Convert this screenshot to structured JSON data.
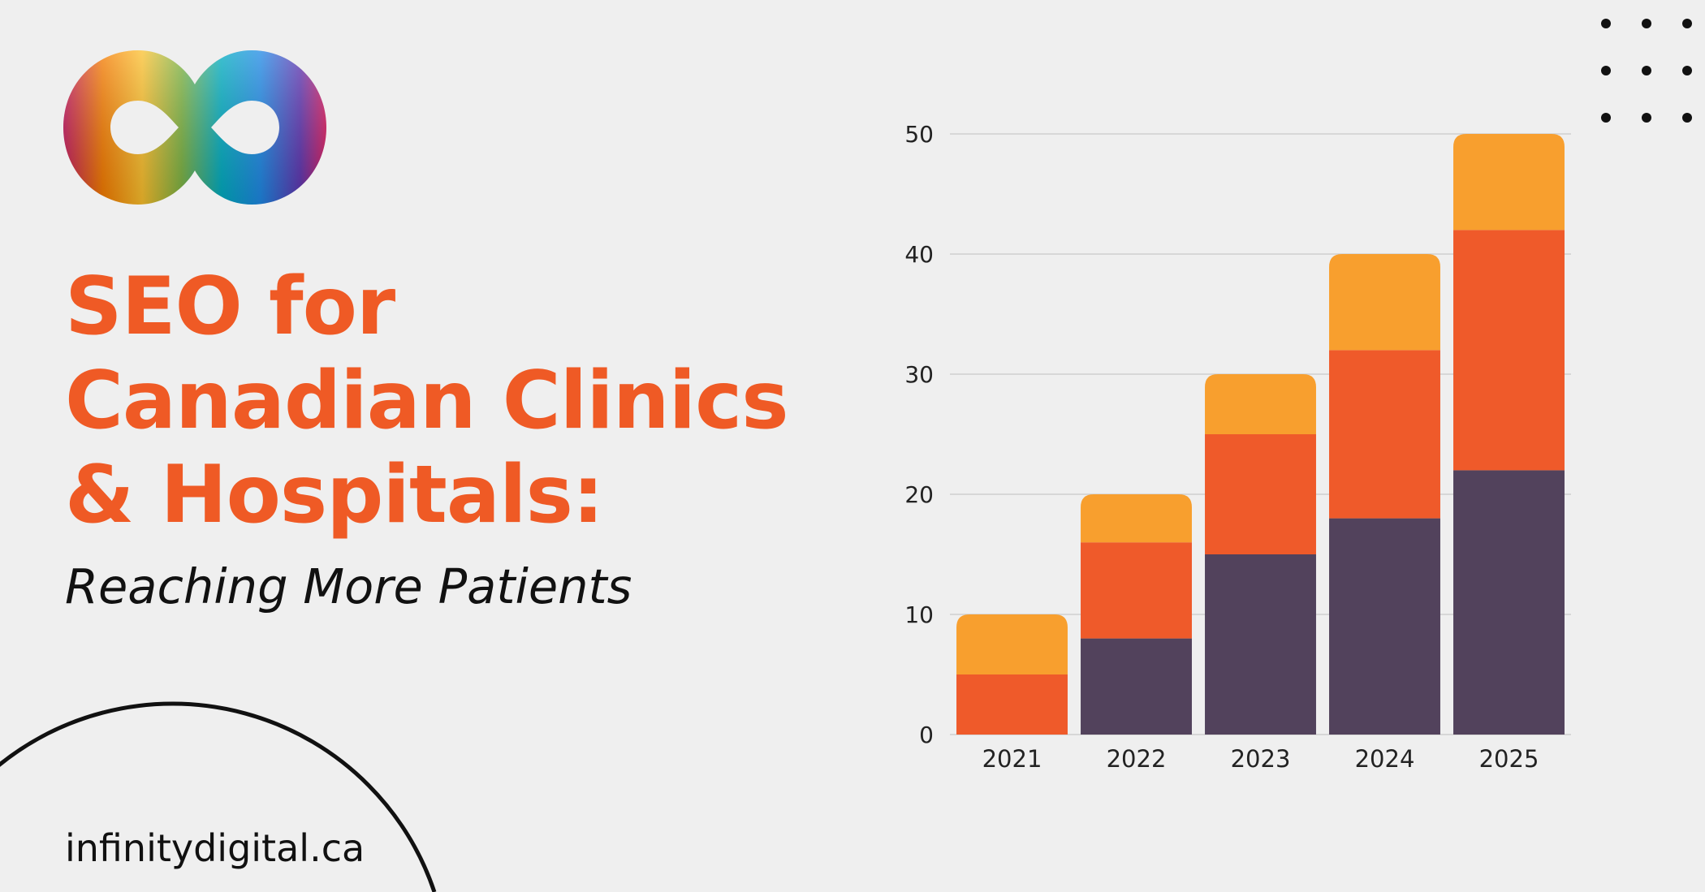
{
  "brand": {
    "logo_icon": "infinity-rainbow-icon",
    "website": "infinitydigital.ca"
  },
  "headline": {
    "lines": [
      "SEO for",
      "Canadian Clinics",
      "& Hospitals:"
    ],
    "color": "#ef5a25"
  },
  "subtitle": "Reaching More Patients",
  "decorations": {
    "dots_icon": "dot-grid-icon",
    "arc_icon": "semicircle-outline-icon"
  },
  "chart_data": {
    "type": "bar",
    "stacked": true,
    "categories": [
      "2021",
      "2022",
      "2023",
      "2024",
      "2025"
    ],
    "series": [
      {
        "values": [
          0,
          8,
          15,
          18,
          22
        ],
        "color": "#52425c"
      },
      {
        "values": [
          5,
          8,
          10,
          14,
          20
        ],
        "color": "#ef5a2a"
      },
      {
        "values": [
          5,
          4,
          5,
          8,
          8
        ],
        "color": "#f89f2e"
      }
    ],
    "ylim": [
      0,
      50
    ],
    "yticks": [
      0,
      10,
      20,
      30,
      40,
      50
    ],
    "grid": true,
    "title": "",
    "xlabel": "",
    "ylabel": ""
  }
}
